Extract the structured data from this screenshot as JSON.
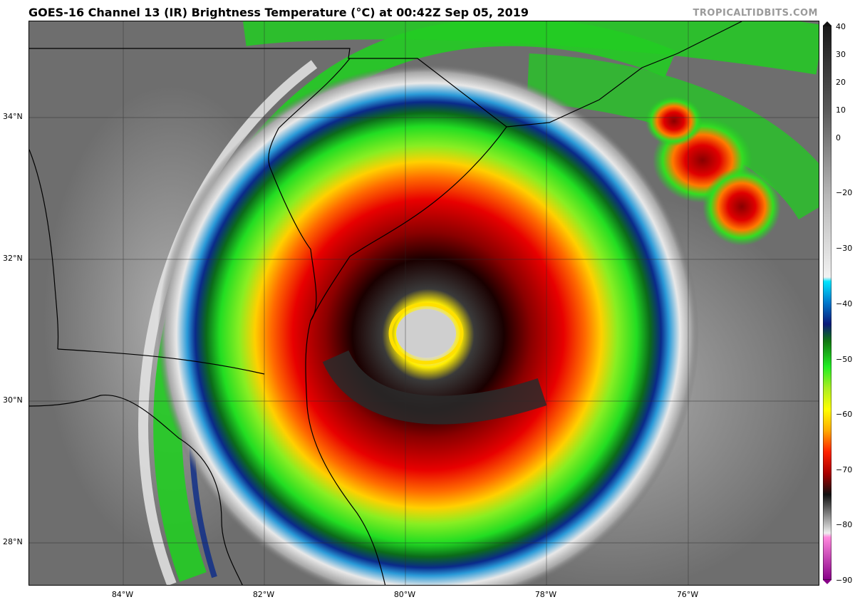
{
  "header": {
    "title": "GOES-16 Channel 13 (IR) Brightness Temperature (°C) at 00:42Z Sep 05, 2019",
    "brand": "TROPICALTIDBITS.COM"
  },
  "map": {
    "latitude_labels": [
      "34°N",
      "32°N",
      "30°N",
      "28°N"
    ],
    "longitude_labels": [
      "84°W",
      "82°W",
      "80°W",
      "78°W",
      "76°W"
    ]
  },
  "colorbar": {
    "unit": "°C",
    "tick_labels": [
      "40",
      "30",
      "20",
      "10",
      "0",
      "−20",
      "−30",
      "−40",
      "−50",
      "−60",
      "−70",
      "−80",
      "−90"
    ],
    "stops": [
      {
        "value": 40,
        "color": "#1a1a1a"
      },
      {
        "value": 20,
        "color": "#5a5a5a"
      },
      {
        "value": 0,
        "color": "#b8b8b8"
      },
      {
        "value": -19,
        "color": "#f2f2f2"
      },
      {
        "value": -20,
        "color": "#00e5ff"
      },
      {
        "value": -25,
        "color": "#0077cc"
      },
      {
        "value": -30,
        "color": "#0a1a7a"
      },
      {
        "value": -34,
        "color": "#117711"
      },
      {
        "value": -40,
        "color": "#22ee22"
      },
      {
        "value": -45,
        "color": "#aaee22"
      },
      {
        "value": -50,
        "color": "#ffff00"
      },
      {
        "value": -55,
        "color": "#ffaa00"
      },
      {
        "value": -60,
        "color": "#ff2200"
      },
      {
        "value": -65,
        "color": "#aa0000"
      },
      {
        "value": -70,
        "color": "#111111"
      },
      {
        "value": -79,
        "color": "#eeeeee"
      },
      {
        "value": -80,
        "color": "#ff88dd"
      },
      {
        "value": -90,
        "color": "#880088"
      }
    ]
  }
}
